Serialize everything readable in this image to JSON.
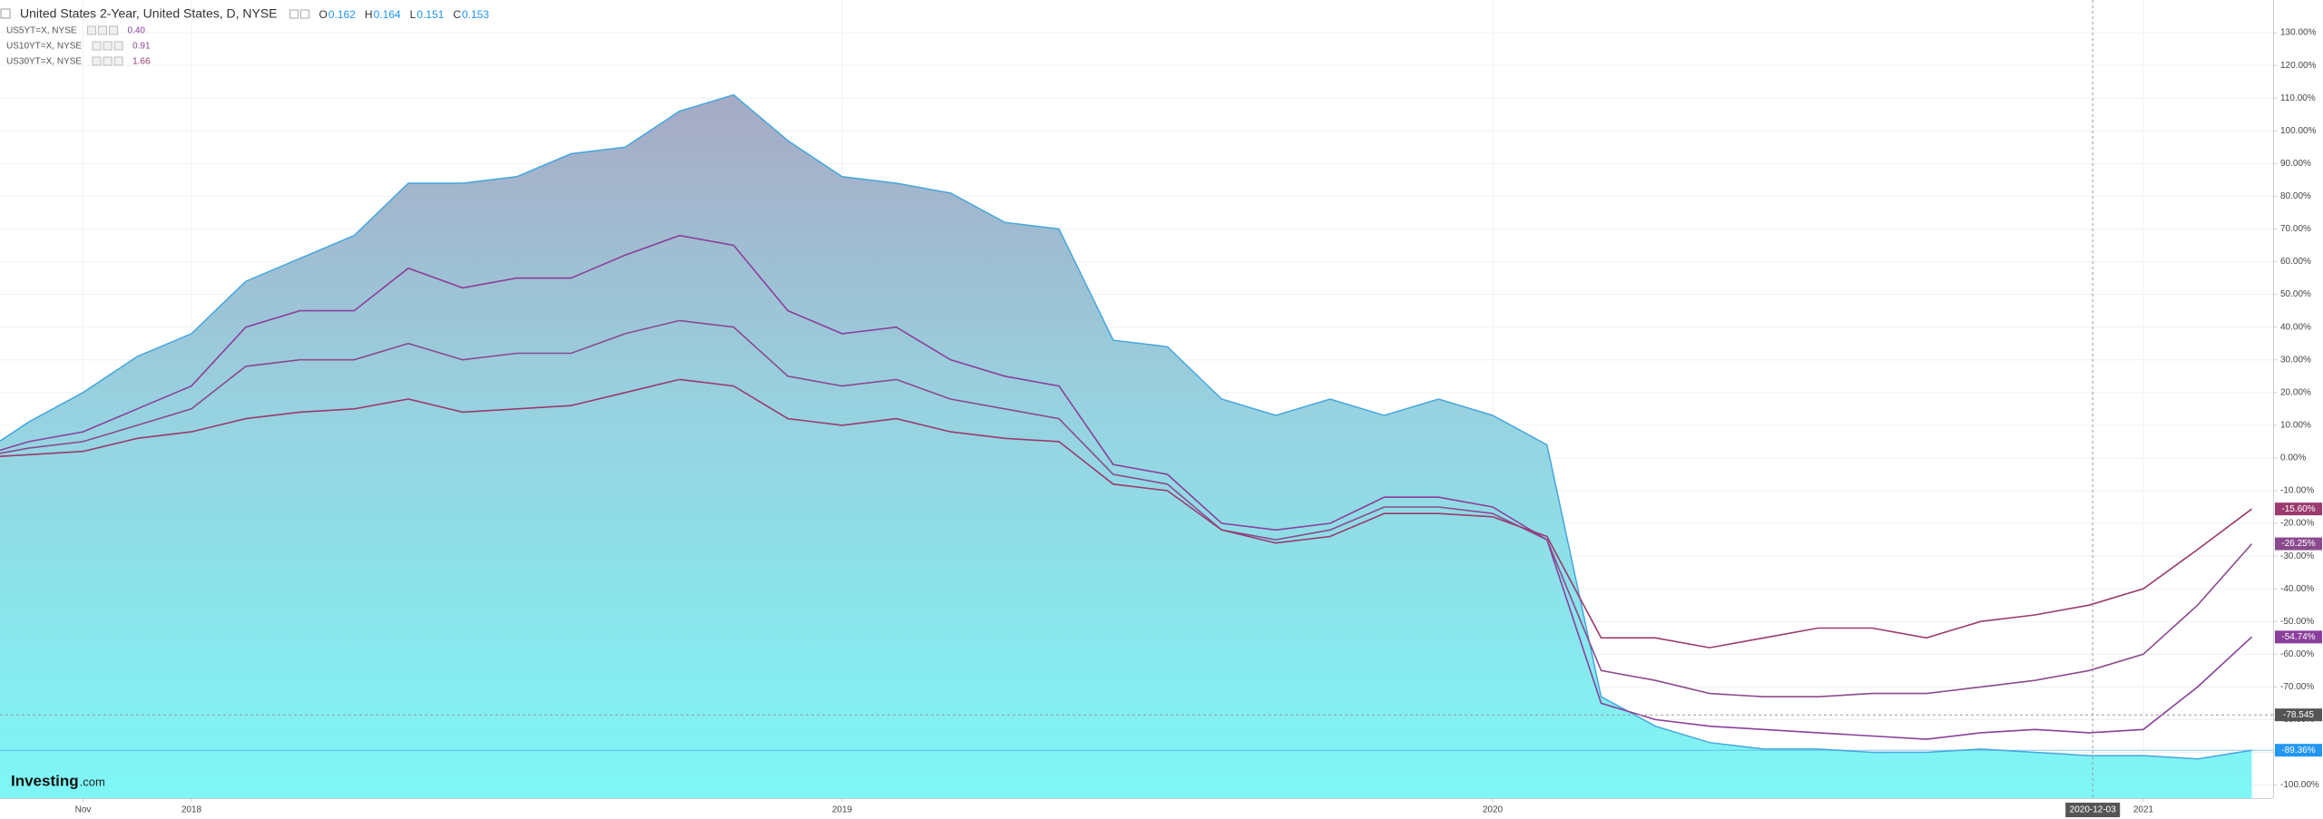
{
  "chart_data": {
    "type": "area",
    "title": "United States 2-Year, United States, D, NYSE",
    "ohlc": [
      {
        "name": "O",
        "value": 0.162
      },
      {
        "name": "H",
        "value": 0.164
      },
      {
        "name": "L",
        "value": 0.151
      },
      {
        "name": "C",
        "value": 0.153
      }
    ],
    "x": [
      "2017-09",
      "2017-10",
      "2017-11",
      "2017-12",
      "2018-01",
      "2018-02",
      "2018-03",
      "2018-04",
      "2018-05",
      "2018-06",
      "2018-07",
      "2018-08",
      "2018-09",
      "2018-10",
      "2018-11",
      "2018-12",
      "2019-01",
      "2019-02",
      "2019-03",
      "2019-04",
      "2019-05",
      "2019-06",
      "2019-07",
      "2019-08",
      "2019-09",
      "2019-10",
      "2019-11",
      "2019-12",
      "2020-01",
      "2020-02",
      "2020-03",
      "2020-04",
      "2020-05",
      "2020-06",
      "2020-07",
      "2020-08",
      "2020-09",
      "2020-10",
      "2020-11",
      "2020-12",
      "2021-01",
      "2021-02",
      "2021-03"
    ],
    "series": [
      {
        "color": "#45a6dd",
        "value_label": "-89.36%",
        "values": [
          0,
          11,
          20,
          31,
          38,
          54,
          61,
          68,
          84,
          84,
          86,
          93,
          95,
          106,
          111,
          97,
          86,
          84,
          81,
          72,
          70,
          36,
          34,
          18,
          13,
          18,
          13,
          18,
          13,
          4,
          -73,
          -82,
          -87,
          -89,
          -89,
          -90,
          -90,
          -89,
          -90,
          -91,
          -91,
          -92,
          -89.36
        ]
      },
      {
        "name": "US5YT=X, NYSE",
        "last": {
          "value": 0.4,
          "label": "0.40"
        },
        "color": "#8a3f9a",
        "value_label": "-54.74%",
        "values": [
          0,
          5,
          8,
          15,
          22,
          40,
          45,
          45,
          58,
          52,
          55,
          55,
          62,
          68,
          65,
          45,
          38,
          40,
          30,
          25,
          22,
          -2,
          -5,
          -20,
          -22,
          -20,
          -12,
          -12,
          -15,
          -25,
          -75,
          -80,
          -82,
          -83,
          -84,
          -85,
          -86,
          -84,
          -83,
          -84,
          -83,
          -70,
          -54.74
        ]
      },
      {
        "name": "US10YT=X, NYSE",
        "last": {
          "value": 0.91,
          "label": "0.91"
        },
        "color": "#8a4a8e",
        "value_label": "-26.25%",
        "values": [
          0,
          3,
          5,
          10,
          15,
          28,
          30,
          30,
          35,
          30,
          32,
          32,
          38,
          42,
          40,
          25,
          22,
          24,
          18,
          15,
          12,
          -5,
          -8,
          -22,
          -25,
          -22,
          -15,
          -15,
          -17,
          -25,
          -65,
          -68,
          -72,
          -73,
          -73,
          -72,
          -72,
          -70,
          -68,
          -65,
          -60,
          -45,
          -26.25
        ]
      },
      {
        "name": "US30YT=X, NYSE",
        "last": {
          "value": 1.66,
          "label": "1.66"
        },
        "color": "#9a3a6e",
        "value_label": "-15.60%",
        "values": [
          0,
          1,
          2,
          6,
          8,
          12,
          14,
          15,
          18,
          14,
          15,
          16,
          20,
          24,
          22,
          12,
          10,
          12,
          8,
          6,
          5,
          -8,
          -10,
          -22,
          -26,
          -24,
          -17,
          -17,
          -18,
          -24,
          -55,
          -55,
          -58,
          -55,
          -52,
          -52,
          -55,
          -50,
          -48,
          -45,
          -40,
          -28,
          -15.6
        ]
      }
    ],
    "ylim": [
      -104,
      140
    ],
    "yticks": [
      {
        "value": -100,
        "label": "-100.00%"
      },
      {
        "value": -90,
        "label": "-90.00%"
      },
      {
        "value": -80,
        "label": "-80.00%"
      },
      {
        "value": -70,
        "label": "-70.00%"
      },
      {
        "value": -60,
        "label": "-60.00%"
      },
      {
        "value": -50,
        "label": "-50.00%"
      },
      {
        "value": -40,
        "label": "-40.00%"
      },
      {
        "value": -30,
        "label": "-30.00%"
      },
      {
        "value": -20,
        "label": "-20.00%"
      },
      {
        "value": -10,
        "label": "-10.00%"
      },
      {
        "value": 0,
        "label": "0.00%"
      },
      {
        "value": 10,
        "label": "10.00%"
      },
      {
        "value": 20,
        "label": "20.00%"
      },
      {
        "value": 30,
        "label": "30.00%"
      },
      {
        "value": 40,
        "label": "40.00%"
      },
      {
        "value": 50,
        "label": "50.00%"
      },
      {
        "value": 60,
        "label": "60.00%"
      },
      {
        "value": 70,
        "label": "70.00%"
      },
      {
        "value": 80,
        "label": "80.00%"
      },
      {
        "value": 90,
        "label": "90.00%"
      },
      {
        "value": 100,
        "label": "100.00%"
      },
      {
        "value": 110,
        "label": "110.00%"
      },
      {
        "value": 120,
        "label": "120.00%"
      },
      {
        "value": 130,
        "label": "130.00%"
      }
    ],
    "xticks": [
      {
        "value": "2017-11",
        "label": "Nov"
      },
      {
        "value": "2018-01",
        "label": "2018"
      },
      {
        "value": "2019-01",
        "label": "2019"
      },
      {
        "value": "2020-01",
        "label": "2020"
      },
      {
        "value": "2021-01",
        "label": "2021"
      }
    ],
    "crosshair": {
      "x": "2020-12-03",
      "y": -78.545
    },
    "grid": true,
    "watermark": {
      "brand": "Investing",
      "suffix": ".com"
    }
  }
}
